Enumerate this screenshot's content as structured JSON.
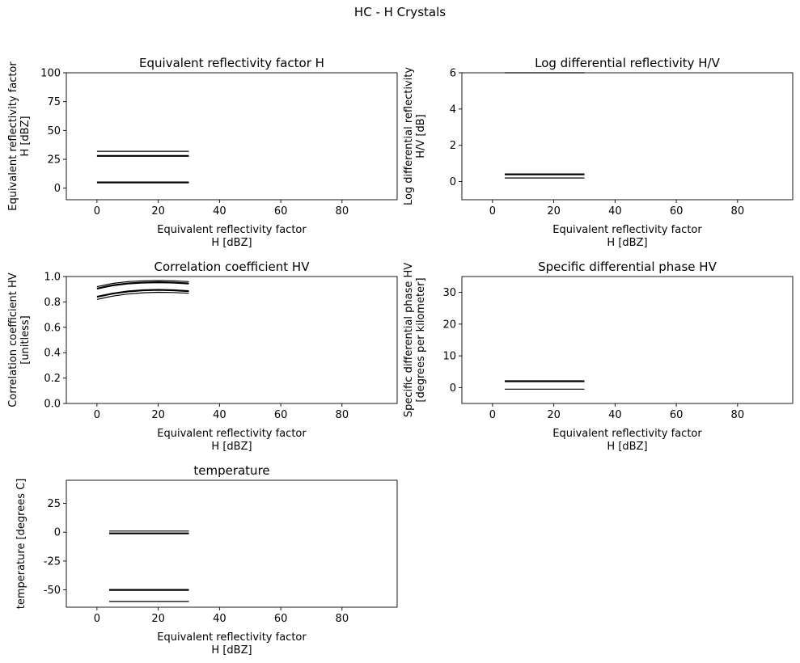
{
  "figure": {
    "suptitle": "HC - H Crystals"
  },
  "chart_data": [
    {
      "type": "line",
      "title": "Equivalent reflectivity factor H",
      "xlabel": [
        "Equivalent reflectivity factor",
        "H [dBZ]"
      ],
      "ylabel": [
        "Equivalent reflectivity factor",
        "H [dBZ]"
      ],
      "xlim": [
        -10,
        98
      ],
      "ylim": [
        -10,
        100
      ],
      "xticks": [
        0,
        20,
        40,
        60,
        80
      ],
      "yticks": [
        0,
        25,
        50,
        75,
        100
      ],
      "grid": false,
      "series": [
        {
          "x": [
            0,
            30
          ],
          "y": [
            32,
            32
          ],
          "lw": 1.2
        },
        {
          "x": [
            0,
            30
          ],
          "y": [
            28,
            28
          ],
          "lw": 2.2
        },
        {
          "x": [
            0,
            30
          ],
          "y": [
            5,
            5
          ],
          "lw": 2.2
        }
      ]
    },
    {
      "type": "line",
      "title": "Log differential reflectivity H/V",
      "xlabel": [
        "Equivalent reflectivity factor",
        "H [dBZ]"
      ],
      "ylabel": [
        "Log differential reflectivity",
        "H/V [dB]"
      ],
      "xlim": [
        -10,
        98
      ],
      "ylim": [
        -1,
        6
      ],
      "xticks": [
        0,
        20,
        40,
        60,
        80
      ],
      "yticks": [
        0,
        2,
        4,
        6
      ],
      "grid": false,
      "series": [
        {
          "x": [
            4,
            30
          ],
          "y": [
            6,
            6
          ],
          "lw": 1.2
        },
        {
          "x": [
            4,
            30
          ],
          "y": [
            0.4,
            0.4
          ],
          "lw": 2.2
        },
        {
          "x": [
            4,
            30
          ],
          "y": [
            0.2,
            0.2
          ],
          "lw": 1.2
        }
      ]
    },
    {
      "type": "line",
      "title": "Correlation coefficient HV",
      "xlabel": [
        "Equivalent reflectivity factor",
        "H [dBZ]"
      ],
      "ylabel": [
        "Correlation coefficient HV",
        "[unitless]"
      ],
      "xlim": [
        -10,
        98
      ],
      "ylim": [
        0,
        1
      ],
      "xticks": [
        0,
        20,
        40,
        60,
        80
      ],
      "yticks": [
        0.0,
        0.2,
        0.4,
        0.6,
        0.8,
        1.0
      ],
      "ytick_labels": [
        "0.0",
        "0.2",
        "0.4",
        "0.6",
        "0.8",
        "1.0"
      ],
      "grid": false,
      "series": [
        {
          "x": [
            0,
            5,
            10,
            15,
            20,
            25,
            30
          ],
          "y": [
            0.92,
            0.945,
            0.96,
            0.966,
            0.968,
            0.966,
            0.96
          ],
          "lw": 1.2
        },
        {
          "x": [
            0,
            5,
            10,
            15,
            20,
            25,
            30
          ],
          "y": [
            0.905,
            0.93,
            0.945,
            0.952,
            0.955,
            0.952,
            0.945
          ],
          "lw": 2.2
        },
        {
          "x": [
            0,
            5,
            10,
            15,
            20,
            25,
            30
          ],
          "y": [
            0.84,
            0.865,
            0.882,
            0.892,
            0.895,
            0.892,
            0.885
          ],
          "lw": 2.2
        },
        {
          "x": [
            0,
            5,
            10,
            15,
            20,
            25,
            30
          ],
          "y": [
            0.82,
            0.845,
            0.862,
            0.872,
            0.876,
            0.874,
            0.868
          ],
          "lw": 1.2
        }
      ]
    },
    {
      "type": "line",
      "title": "Specific differential phase HV",
      "xlabel": [
        "Equivalent reflectivity factor",
        "H [dBZ]"
      ],
      "ylabel": [
        "Specific differential phase HV",
        "[degrees per kilometer]"
      ],
      "xlim": [
        -10,
        98
      ],
      "ylim": [
        -5,
        35
      ],
      "xticks": [
        0,
        20,
        40,
        60,
        80
      ],
      "yticks": [
        0,
        10,
        20,
        30
      ],
      "grid": false,
      "series": [
        {
          "x": [
            4,
            30
          ],
          "y": [
            2,
            2
          ],
          "lw": 2.2
        },
        {
          "x": [
            4,
            30
          ],
          "y": [
            -0.5,
            -0.5
          ],
          "lw": 1.2
        }
      ]
    },
    {
      "type": "line",
      "title": "temperature",
      "xlabel": [
        "Equivalent reflectivity factor",
        "H [dBZ]"
      ],
      "ylabel": [
        "temperature [degrees C]"
      ],
      "xlim": [
        -10,
        98
      ],
      "ylim": [
        -65,
        45
      ],
      "xticks": [
        0,
        20,
        40,
        60,
        80
      ],
      "yticks": [
        -50,
        -25,
        0,
        25
      ],
      "grid": false,
      "series": [
        {
          "x": [
            4,
            30
          ],
          "y": [
            1,
            1
          ],
          "lw": 1.2
        },
        {
          "x": [
            4,
            30
          ],
          "y": [
            -1,
            -1
          ],
          "lw": 2.2
        },
        {
          "x": [
            4,
            30
          ],
          "y": [
            -50,
            -50
          ],
          "lw": 2.2
        },
        {
          "x": [
            4,
            30
          ],
          "y": [
            -60,
            -60
          ],
          "lw": 1.2
        }
      ]
    }
  ]
}
